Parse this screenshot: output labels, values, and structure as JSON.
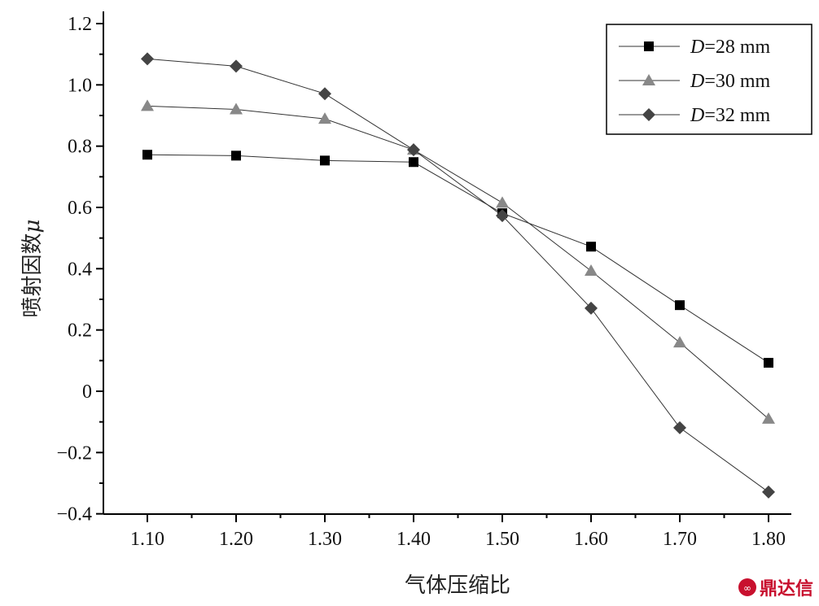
{
  "chart_data": {
    "type": "line",
    "title": "",
    "xlabel": "气体压缩比",
    "ylabel": "喷射因数",
    "ylabel_symbol": "μ",
    "x": [
      1.1,
      1.2,
      1.3,
      1.4,
      1.5,
      1.6,
      1.7,
      1.8
    ],
    "x_tick_labels": [
      "1.10",
      "1.20",
      "1.30",
      "1.40",
      "1.50",
      "1.60",
      "1.70",
      "1.80"
    ],
    "y_tick_labels": [
      "−0.4",
      "−0.2",
      "0",
      "0.2",
      "0.4",
      "0.6",
      "0.8",
      "1.0",
      "1.2"
    ],
    "y_ticks": [
      -0.4,
      -0.2,
      0,
      0.2,
      0.4,
      0.6,
      0.8,
      1.0,
      1.2
    ],
    "xlim": [
      1.05,
      1.83
    ],
    "ylim": [
      -0.4,
      1.2
    ],
    "grid": false,
    "legend_position": "top-right",
    "series": [
      {
        "name": "D=28 mm",
        "var": "D",
        "rest": "=28 mm",
        "marker": "square",
        "color": "#000000",
        "values": [
          0.772,
          0.769,
          0.753,
          0.748,
          0.581,
          0.472,
          0.281,
          0.093
        ]
      },
      {
        "name": "D=30 mm",
        "var": "D",
        "rest": "=30 mm",
        "marker": "triangle",
        "color": "#888888",
        "values": [
          0.931,
          0.92,
          0.889,
          0.788,
          0.615,
          0.393,
          0.159,
          -0.09
        ]
      },
      {
        "name": "D=32 mm",
        "var": "D",
        "rest": "=32 mm",
        "marker": "diamond",
        "color": "#444444",
        "values": [
          1.085,
          1.061,
          0.971,
          0.788,
          0.573,
          0.271,
          -0.119,
          -0.329
        ]
      }
    ]
  },
  "watermark": {
    "text": "鼎达信"
  }
}
